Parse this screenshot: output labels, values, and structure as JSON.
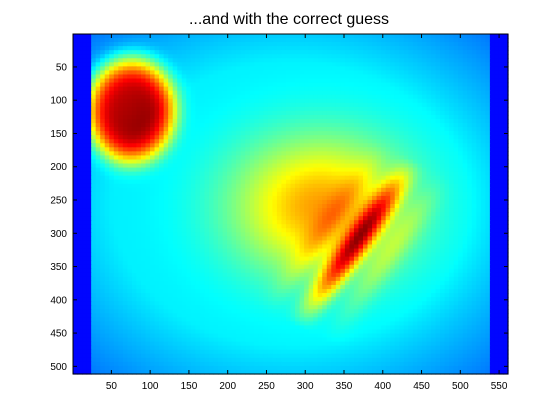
{
  "chart_data": {
    "type": "heatmap",
    "title": "...and with the correct guess",
    "xlabel": "",
    "ylabel": "",
    "xlim": [
      0.5,
      561.5
    ],
    "ylim": [
      0.5,
      511.5
    ],
    "y_axis_reversed": true,
    "xticks": [
      50,
      100,
      150,
      200,
      250,
      300,
      350,
      400,
      450,
      500,
      550
    ],
    "yticks": [
      50,
      100,
      150,
      200,
      250,
      300,
      350,
      400,
      450,
      500
    ],
    "colormap": "jet",
    "color_range": [
      0,
      1
    ],
    "background_level": 0.36,
    "regions": [
      {
        "name": "left-edge-band",
        "x": [
          1,
          25
        ],
        "y": [
          1,
          511
        ],
        "level": 0.13
      },
      {
        "name": "right-edge-band",
        "x": [
          540,
          561
        ],
        "y": [
          1,
          511
        ],
        "level": 0.13
      },
      {
        "name": "bright-blob-upper-left",
        "center": [
          75,
          115
        ],
        "radius": [
          55,
          75
        ],
        "peak_level": 0.98
      },
      {
        "name": "central-diffuse-region",
        "center": [
          320,
          260
        ],
        "radius": [
          120,
          110
        ],
        "peak_level": 0.72
      },
      {
        "name": "diagonal-streaks",
        "from": [
          290,
          440
        ],
        "to": [
          440,
          190
        ],
        "peak_level": 0.9
      }
    ],
    "grid": false,
    "legend": "none"
  }
}
